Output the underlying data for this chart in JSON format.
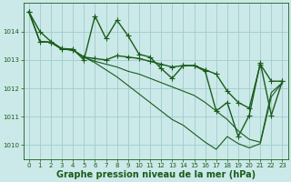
{
  "bg_color": "#cbe9e9",
  "line_color": "#1a5c1a",
  "grid_color": "#a0cccc",
  "xlabel": "Graphe pression niveau de la mer (hPa)",
  "xlabel_fontsize": 7,
  "ylim": [
    1009.5,
    1015.0
  ],
  "xlim": [
    -0.5,
    23.5
  ],
  "yticks": [
    1010,
    1011,
    1012,
    1013,
    1014
  ],
  "xticks": [
    0,
    1,
    2,
    3,
    4,
    5,
    6,
    7,
    8,
    9,
    10,
    11,
    12,
    13,
    14,
    15,
    16,
    17,
    18,
    19,
    20,
    21,
    22,
    23
  ],
  "lines": [
    {
      "x": [
        0,
        1,
        2,
        3,
        4,
        5,
        6,
        7,
        8,
        9,
        10,
        11,
        12,
        13,
        14,
        15,
        16,
        17,
        18,
        19,
        20,
        21,
        22,
        23
      ],
      "y": [
        1014.7,
        1014.0,
        1013.65,
        1013.4,
        1013.38,
        1013.0,
        1014.55,
        1013.75,
        1014.4,
        1013.85,
        1013.2,
        1013.1,
        1012.7,
        1012.35,
        1012.8,
        1012.8,
        1012.6,
        1011.2,
        1011.5,
        1010.3,
        1011.05,
        1012.9,
        1011.05,
        1012.25
      ],
      "marker": "+",
      "lw": 1.0,
      "ms": 4
    },
    {
      "x": [
        0,
        1,
        2,
        3,
        4,
        5,
        6,
        7,
        8,
        9,
        10,
        11,
        12,
        13,
        14,
        15,
        16,
        17,
        18,
        19,
        20,
        21,
        22,
        23
      ],
      "y": [
        1014.7,
        1013.65,
        1013.62,
        1013.38,
        1013.35,
        1013.1,
        1013.05,
        1013.0,
        1013.15,
        1013.1,
        1013.05,
        1012.95,
        1012.85,
        1012.75,
        1012.8,
        1012.8,
        1012.65,
        1012.5,
        1011.9,
        1011.5,
        1011.3,
        1012.85,
        1012.25,
        1012.25
      ],
      "marker": "+",
      "lw": 1.0,
      "ms": 4
    },
    {
      "x": [
        0,
        1,
        2,
        3,
        4,
        5,
        6,
        7,
        8,
        9,
        10,
        11,
        12,
        13,
        14,
        15,
        16,
        17,
        18,
        19,
        20,
        21,
        22,
        23
      ],
      "y": [
        1014.7,
        1013.65,
        1013.62,
        1013.38,
        1013.35,
        1013.1,
        1012.95,
        1012.85,
        1012.75,
        1012.6,
        1012.5,
        1012.35,
        1012.2,
        1012.05,
        1011.9,
        1011.75,
        1011.5,
        1011.2,
        1010.9,
        1010.5,
        1010.2,
        1010.1,
        1011.85,
        1012.2
      ],
      "marker": null,
      "lw": 0.8,
      "ms": 0
    },
    {
      "x": [
        0,
        1,
        2,
        3,
        4,
        5,
        6,
        7,
        8,
        9,
        10,
        11,
        12,
        13,
        14,
        15,
        16,
        17,
        18,
        19,
        20,
        21,
        22,
        23
      ],
      "y": [
        1014.7,
        1013.65,
        1013.62,
        1013.38,
        1013.35,
        1013.1,
        1012.9,
        1012.65,
        1012.4,
        1012.1,
        1011.8,
        1011.5,
        1011.2,
        1010.9,
        1010.7,
        1010.4,
        1010.1,
        1009.85,
        1010.3,
        1010.05,
        1009.9,
        1010.05,
        1011.7,
        1012.2
      ],
      "marker": null,
      "lw": 0.8,
      "ms": 0
    }
  ]
}
